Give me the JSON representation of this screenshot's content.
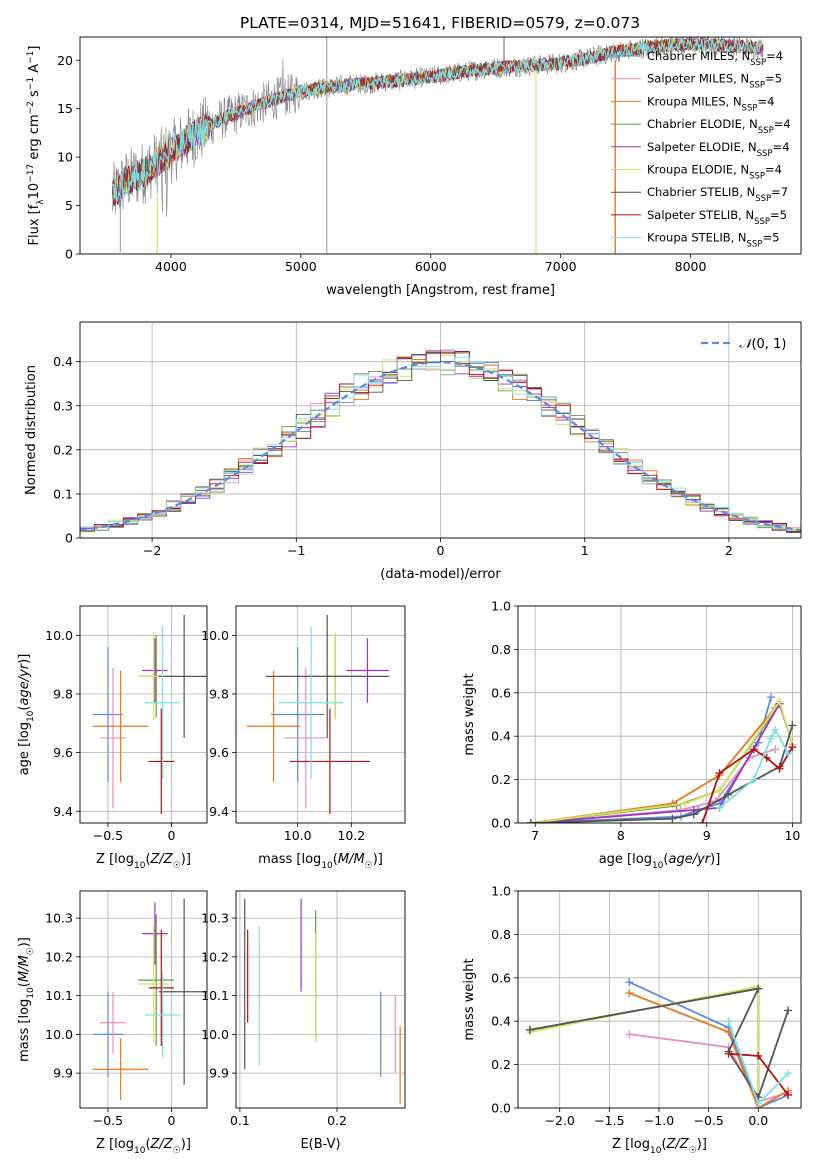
{
  "figure_title": "PLATE=0314, MJD=51641, FIBERID=0579, z=0.073",
  "colors": {
    "chabrier_miles": "#5b8ddc",
    "salpeter_miles": "#e88fbf",
    "kroupa_miles": "#e8791e",
    "chabrier_elodie": "#6a9a4a",
    "salpeter_elodie": "#9b34c8",
    "kroupa_elodie": "#cfe65a",
    "chabrier_stelib": "#555555",
    "salpeter_stelib": "#b01414",
    "kroupa_stelib": "#7ee0e6",
    "data": "#808080",
    "normal": "#5b8ddc"
  },
  "chart_data": [
    {
      "id": "spectrum",
      "type": "line",
      "title": "PLATE=0314, MJD=51641, FIBERID=0579, z=0.073",
      "xlabel": "wavelength [Angstrom, rest frame]",
      "ylabel": "Flux [f_λ10^-17 erg cm^-2 s^-1 A^-1]",
      "xlim": [
        3300,
        8850
      ],
      "ylim": [
        0,
        22.4
      ],
      "xticks": [
        4000,
        5000,
        6000,
        7000,
        8000
      ],
      "yticks": [
        0,
        5,
        10,
        15,
        20
      ],
      "grid": false,
      "legend_position": "top-right",
      "continuum": {
        "x": [
          3550,
          3650,
          3800,
          4000,
          4200,
          4400,
          4600,
          4800,
          5000,
          5200,
          5400,
          5600,
          5800,
          6000,
          6200,
          6400,
          6600,
          6800,
          7000,
          7200,
          7400,
          7600,
          7800,
          8000,
          8200,
          8500
        ],
        "y": [
          6.0,
          7.5,
          8.5,
          10.5,
          12.5,
          14.0,
          15.0,
          16.0,
          16.8,
          17.2,
          17.5,
          17.7,
          18.0,
          18.3,
          18.7,
          19.1,
          19.3,
          19.5,
          19.7,
          20.2,
          20.8,
          21.2,
          21.5,
          21.7,
          21.6,
          21.3
        ]
      },
      "series": [
        {
          "name": "Chabrier MILES, N_SSP=4",
          "key": "chabrier_miles"
        },
        {
          "name": "Salpeter MILES, N_SSP=5",
          "key": "salpeter_miles"
        },
        {
          "name": "Kroupa MILES, N_SSP=4",
          "key": "kroupa_miles"
        },
        {
          "name": "Chabrier ELODIE, N_SSP=4",
          "key": "chabrier_elodie"
        },
        {
          "name": "Salpeter ELODIE, N_SSP=4",
          "key": "salpeter_elodie"
        },
        {
          "name": "Kroupa ELODIE, N_SSP=4",
          "key": "kroupa_elodie"
        },
        {
          "name": "Chabrier STELIB, N_SSP=7",
          "key": "chabrier_stelib"
        },
        {
          "name": "Salpeter STELIB, N_SSP=5",
          "key": "salpeter_stelib"
        },
        {
          "name": "Kroupa STELIB, N_SSP=5",
          "key": "kroupa_stelib"
        }
      ]
    },
    {
      "id": "residuals",
      "type": "line",
      "xlabel": "(data-model)/error",
      "ylabel": "Normed distribution",
      "xlim": [
        -2.5,
        2.5
      ],
      "ylim": [
        0,
        0.49
      ],
      "xticks": [
        -2,
        -1,
        0,
        1,
        2
      ],
      "yticks": [
        0.0,
        0.1,
        0.2,
        0.3,
        0.4
      ],
      "grid": true,
      "legend_position": "top-right",
      "legend": "N(0,1)",
      "bin_width": 0.1,
      "normal": {
        "mu": 0,
        "sigma": 1
      }
    },
    {
      "id": "age_vs_Z",
      "type": "scatter",
      "xlabel": "Z [log10(Z/Z_sun)]",
      "ylabel": "age  [log10(age/yr)]",
      "xlim": [
        -0.72,
        0.28
      ],
      "ylim": [
        9.36,
        10.1
      ],
      "xticks": [
        -0.5,
        0.0
      ],
      "yticks": [
        9.4,
        9.6,
        9.8,
        10.0
      ],
      "grid": true,
      "points": [
        {
          "key": "chabrier_miles",
          "x": -0.5,
          "xerr": 0.12,
          "y": 9.73,
          "yerr": 0.23
        },
        {
          "key": "salpeter_miles",
          "x": -0.46,
          "xerr": 0.1,
          "y": 9.65,
          "yerr": 0.24
        },
        {
          "key": "kroupa_miles",
          "x": -0.4,
          "xerr": 0.22,
          "y": 9.69,
          "yerr": 0.19
        },
        {
          "key": "chabrier_elodie",
          "x": -0.12,
          "xerr": 0.14,
          "y": 9.86,
          "yerr": 0.14
        },
        {
          "key": "salpeter_elodie",
          "x": -0.13,
          "xerr": 0.1,
          "y": 9.88,
          "yerr": 0.11
        },
        {
          "key": "kroupa_elodie",
          "x": -0.14,
          "xerr": 0.12,
          "y": 9.86,
          "yerr": 0.15
        },
        {
          "key": "chabrier_stelib",
          "x": 0.1,
          "xerr": 0.2,
          "y": 9.86,
          "yerr": 0.21
        },
        {
          "key": "salpeter_stelib",
          "x": -0.08,
          "xerr": 0.1,
          "y": 9.57,
          "yerr": 0.18
        },
        {
          "key": "kroupa_stelib",
          "x": -0.07,
          "xerr": 0.14,
          "y": 9.77,
          "yerr": 0.26
        }
      ]
    },
    {
      "id": "age_vs_mass",
      "type": "scatter",
      "xlabel": "mass [log10(M/M_sun)]",
      "ylabel": "",
      "xlim": [
        9.77,
        10.4
      ],
      "ylim": [
        9.36,
        10.1
      ],
      "xticks": [
        10.0,
        10.2
      ],
      "yticks": [
        9.4,
        9.6,
        9.8,
        10.0
      ],
      "grid": true,
      "points": [
        {
          "key": "chabrier_miles",
          "x": 10.0,
          "xerr": 0.1,
          "y": 9.73,
          "yerr": 0.23
        },
        {
          "key": "salpeter_miles",
          "x": 10.03,
          "xerr": 0.08,
          "y": 9.65,
          "yerr": 0.24
        },
        {
          "key": "kroupa_miles",
          "x": 9.91,
          "xerr": 0.1,
          "y": 9.69,
          "yerr": 0.19
        },
        {
          "key": "chabrier_elodie",
          "x": 10.14,
          "xerr": 0.1,
          "y": 9.86,
          "yerr": 0.14
        },
        {
          "key": "salpeter_elodie",
          "x": 10.26,
          "xerr": 0.08,
          "y": 9.88,
          "yerr": 0.11
        },
        {
          "key": "kroupa_elodie",
          "x": 10.14,
          "xerr": 0.1,
          "y": 9.86,
          "yerr": 0.15
        },
        {
          "key": "chabrier_stelib",
          "x": 10.11,
          "xerr": 0.23,
          "y": 9.86,
          "yerr": 0.21
        },
        {
          "key": "salpeter_stelib",
          "x": 10.12,
          "xerr": 0.15,
          "y": 9.57,
          "yerr": 0.18
        },
        {
          "key": "kroupa_stelib",
          "x": 10.05,
          "xerr": 0.12,
          "y": 9.77,
          "yerr": 0.26
        }
      ]
    },
    {
      "id": "mass_weight_vs_age",
      "type": "line",
      "xlabel": "age  [log10(age/yr)]",
      "ylabel": "mass weight",
      "xlim": [
        6.8,
        10.1
      ],
      "ylim": [
        0,
        1.0
      ],
      "xticks": [
        7,
        8,
        9,
        10
      ],
      "yticks": [
        0.0,
        0.2,
        0.4,
        0.6,
        0.8,
        1.0
      ],
      "grid": true,
      "series": [
        {
          "key": "chabrier_miles",
          "x": [
            6.95,
            8.7,
            8.9,
            9.15,
            9.6,
            9.75
          ],
          "y": [
            0.0,
            0.03,
            0.06,
            0.09,
            0.37,
            0.58
          ]
        },
        {
          "key": "salpeter_miles",
          "x": [
            6.95,
            8.7,
            9.1,
            9.5,
            9.8
          ],
          "y": [
            0.0,
            0.06,
            0.1,
            0.3,
            0.34
          ]
        },
        {
          "key": "kroupa_miles",
          "x": [
            6.95,
            8.6,
            9.15,
            9.8
          ],
          "y": [
            0.0,
            0.09,
            0.22,
            0.53
          ]
        },
        {
          "key": "chabrier_elodie",
          "x": [
            6.95,
            8.65,
            9.15,
            9.85
          ],
          "y": [
            0.0,
            0.08,
            0.15,
            0.55
          ]
        },
        {
          "key": "salpeter_elodie",
          "x": [
            6.95,
            8.85,
            9.15,
            9.85,
            10.0
          ],
          "y": [
            0.0,
            0.06,
            0.07,
            0.55,
            0.36
          ]
        },
        {
          "key": "kroupa_elodie",
          "x": [
            6.95,
            8.75,
            9.15,
            9.85,
            10.0
          ],
          "y": [
            0.0,
            0.09,
            0.15,
            0.56,
            0.36
          ]
        },
        {
          "key": "chabrier_stelib",
          "x": [
            6.95,
            8.6,
            8.85,
            9.25,
            9.85,
            10.0
          ],
          "y": [
            0.0,
            0.02,
            0.04,
            0.13,
            0.26,
            0.45
          ]
        },
        {
          "key": "salpeter_stelib",
          "x": [
            8.95,
            9.15,
            9.55,
            9.7,
            9.85,
            10.0
          ],
          "y": [
            0.0,
            0.23,
            0.34,
            0.3,
            0.25,
            0.35
          ]
        },
        {
          "key": "kroupa_stelib",
          "x": [
            9.15,
            9.55,
            9.75,
            9.8,
            9.95
          ],
          "y": [
            0.07,
            0.2,
            0.39,
            0.43,
            0.32
          ]
        }
      ]
    },
    {
      "id": "mass_vs_Z",
      "type": "scatter",
      "xlabel": "Z [log10(Z/Z_sun)]",
      "ylabel": "mass [log10(M/M_sun)]",
      "xlim": [
        -0.72,
        0.28
      ],
      "ylim": [
        9.81,
        10.37
      ],
      "xticks": [
        -0.5,
        0.0
      ],
      "yticks": [
        9.9,
        10.0,
        10.1,
        10.2,
        10.3
      ],
      "grid": true,
      "points": [
        {
          "key": "chabrier_miles",
          "x": -0.5,
          "xerr": 0.12,
          "y": 10.0,
          "yerr": 0.11
        },
        {
          "key": "salpeter_miles",
          "x": -0.46,
          "xerr": 0.1,
          "y": 10.03,
          "yerr": 0.08
        },
        {
          "key": "kroupa_miles",
          "x": -0.4,
          "xerr": 0.22,
          "y": 9.91,
          "yerr": 0.08
        },
        {
          "key": "chabrier_elodie",
          "x": -0.12,
          "xerr": 0.14,
          "y": 10.14,
          "yerr": 0.17
        },
        {
          "key": "salpeter_elodie",
          "x": -0.13,
          "xerr": 0.1,
          "y": 10.26,
          "yerr": 0.08
        },
        {
          "key": "kroupa_elodie",
          "x": -0.14,
          "xerr": 0.12,
          "y": 10.13,
          "yerr": 0.15
        },
        {
          "key": "chabrier_stelib",
          "x": 0.1,
          "xerr": 0.2,
          "y": 10.11,
          "yerr": 0.24
        },
        {
          "key": "salpeter_stelib",
          "x": -0.08,
          "xerr": 0.1,
          "y": 10.12,
          "yerr": 0.15
        },
        {
          "key": "kroupa_stelib",
          "x": -0.07,
          "xerr": 0.14,
          "y": 10.05,
          "yerr": 0.11
        }
      ]
    },
    {
      "id": "mass_vs_ebv",
      "type": "scatter",
      "xlabel": "E(B-V)",
      "ylabel": "",
      "xlim": [
        0.096,
        0.27
      ],
      "ylim": [
        9.81,
        10.37
      ],
      "xticks": [
        0.1,
        0.2
      ],
      "yticks": [
        9.9,
        10.0,
        10.1,
        10.2,
        10.3
      ],
      "grid": true,
      "points": [
        {
          "key": "chabrier_miles",
          "x": 0.245,
          "y": 10.0,
          "yerr": 0.11
        },
        {
          "key": "salpeter_miles",
          "x": 0.26,
          "y": 10.0,
          "yerr": 0.1
        },
        {
          "key": "kroupa_miles",
          "x": 0.265,
          "y": 9.92,
          "yerr": 0.1
        },
        {
          "key": "chabrier_elodie",
          "x": 0.178,
          "y": 10.15,
          "yerr": 0.17
        },
        {
          "key": "salpeter_elodie",
          "x": 0.163,
          "y": 10.23,
          "yerr": 0.12
        },
        {
          "key": "kroupa_elodie",
          "x": 0.178,
          "y": 10.12,
          "yerr": 0.14
        },
        {
          "key": "chabrier_stelib",
          "x": 0.105,
          "y": 10.13,
          "yerr": 0.22
        },
        {
          "key": "salpeter_stelib",
          "x": 0.108,
          "y": 10.15,
          "yerr": 0.12
        },
        {
          "key": "kroupa_stelib",
          "x": 0.12,
          "y": 10.1,
          "yerr": 0.18
        }
      ]
    },
    {
      "id": "mass_weight_vs_Z",
      "type": "line",
      "xlabel": "Z [log10(Z/Z_sun)]",
      "ylabel": "mass weight",
      "xlim": [
        -2.42,
        0.43
      ],
      "ylim": [
        0,
        1.0
      ],
      "xticks": [
        -2.0,
        -1.5,
        -1.0,
        -0.5,
        0.0
      ],
      "yticks": [
        0.0,
        0.2,
        0.4,
        0.6,
        0.8,
        1.0
      ],
      "grid": true,
      "series": [
        {
          "key": "chabrier_miles",
          "x": [
            -1.3,
            -0.3,
            0.0,
            0.3
          ],
          "y": [
            0.58,
            0.37,
            0.0,
            0.06
          ]
        },
        {
          "key": "salpeter_miles",
          "x": [
            -1.3,
            -0.3,
            0.0,
            0.3
          ],
          "y": [
            0.34,
            0.28,
            0.03,
            0.07
          ]
        },
        {
          "key": "kroupa_miles",
          "x": [
            -1.3,
            -0.3,
            0.0,
            0.3
          ],
          "y": [
            0.53,
            0.35,
            0.0,
            0.08
          ]
        },
        {
          "key": "chabrier_elodie",
          "x": [
            -2.3,
            0.0,
            0.0
          ],
          "y": [
            0.36,
            0.55,
            0.0
          ]
        },
        {
          "key": "salpeter_elodie",
          "x": [
            -2.3,
            0.0,
            0.0
          ],
          "y": [
            0.36,
            0.55,
            0.0
          ]
        },
        {
          "key": "kroupa_elodie",
          "x": [
            -2.3,
            0.0,
            0.0
          ],
          "y": [
            0.35,
            0.56,
            0.0
          ]
        },
        {
          "key": "chabrier_stelib",
          "x": [
            -2.3,
            0.0,
            -0.3,
            0.0,
            0.3
          ],
          "y": [
            0.36,
            0.55,
            0.26,
            0.05,
            0.45
          ]
        },
        {
          "key": "salpeter_stelib",
          "x": [
            -0.3,
            0.0,
            0.3
          ],
          "y": [
            0.25,
            0.24,
            0.06
          ]
        },
        {
          "key": "kroupa_stelib",
          "x": [
            -0.3,
            0.0,
            0.3
          ],
          "y": [
            0.4,
            0.02,
            0.16
          ]
        }
      ]
    }
  ]
}
